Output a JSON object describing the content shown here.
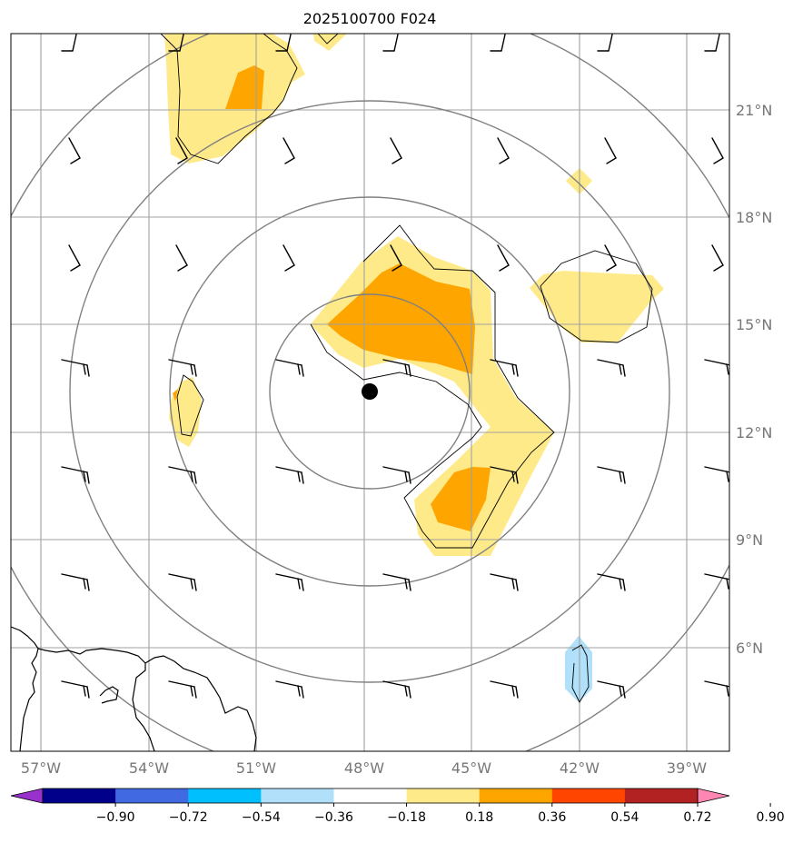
{
  "title": "2025100700 F024",
  "axes": {
    "lon_labels": [
      "57°W",
      "54°W",
      "51°W",
      "48°W",
      "45°W",
      "42°W",
      "39°W"
    ],
    "lat_labels": [
      "21°N",
      "18°N",
      "15°N",
      "12°N",
      "9°N",
      "6°N"
    ],
    "lon_range": [
      -57.8,
      -37.8
    ],
    "lat_range": [
      3.2,
      23.2
    ]
  },
  "storm_center": {
    "lon": -47.85,
    "lat": 13.1
  },
  "range_rings": {
    "count": 4
  },
  "colorbar": {
    "tick_labels": [
      "−0.90",
      "−0.72",
      "−0.54",
      "−0.36",
      "−0.18",
      "0.18",
      "0.36",
      "0.54",
      "0.72",
      "0.90"
    ],
    "colors": [
      "#9932cc",
      "#00008b",
      "#4169e1",
      "#00bfff",
      "#b0e0fa",
      "#ffffff",
      "#ffea8a",
      "#ffa500",
      "#ff4500",
      "#b22222",
      "#ff85b2"
    ]
  },
  "colors": {
    "light_yellow": "#ffea8a",
    "orange": "#ffa500",
    "light_blue": "#b0e0fa",
    "grid": "#a0a0a0",
    "rings": "#808080",
    "tick_label": "#777777"
  }
}
